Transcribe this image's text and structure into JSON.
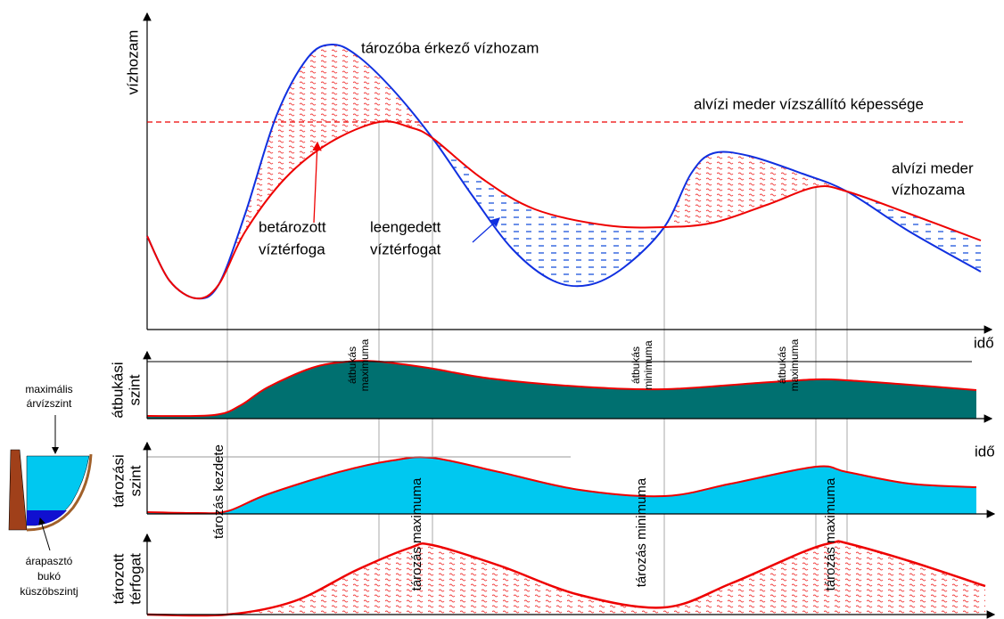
{
  "panels": {
    "discharge": {
      "axis_label": "vízhozam",
      "inflow_label": "tározóba érkező vízhozam",
      "capacity_label": "alvízi meder vízszállító képessége",
      "outflow_label": [
        "alvízi meder",
        "vízhozama"
      ],
      "stored_label": [
        "betározott",
        "víztérfoga"
      ],
      "released_label": [
        "leengedett",
        "víztérfogat"
      ],
      "time_label": "idő"
    },
    "overflow": {
      "axis_label": [
        "átbukási",
        "szint"
      ],
      "events": [
        [
          "átbukás",
          "maximuma"
        ],
        [
          "átbukás",
          "minimuma"
        ],
        [
          "átbukás",
          "maximuma"
        ]
      ]
    },
    "storage_level": {
      "axis_label": [
        "tározási",
        "szint"
      ],
      "time_label": "idő"
    },
    "storage_volume": {
      "axis_label": [
        "tározott",
        "térfogat"
      ],
      "events": [
        "tározás kezdete",
        "tározás maximuma",
        "tározás minimuma",
        "tározás maximuma"
      ]
    }
  },
  "reservoir_sketch": {
    "max_level_label": [
      "maximális",
      "árvízszint"
    ],
    "weir_label": [
      "árapasztó",
      "bukó",
      "küszöbszintj"
    ]
  }
}
